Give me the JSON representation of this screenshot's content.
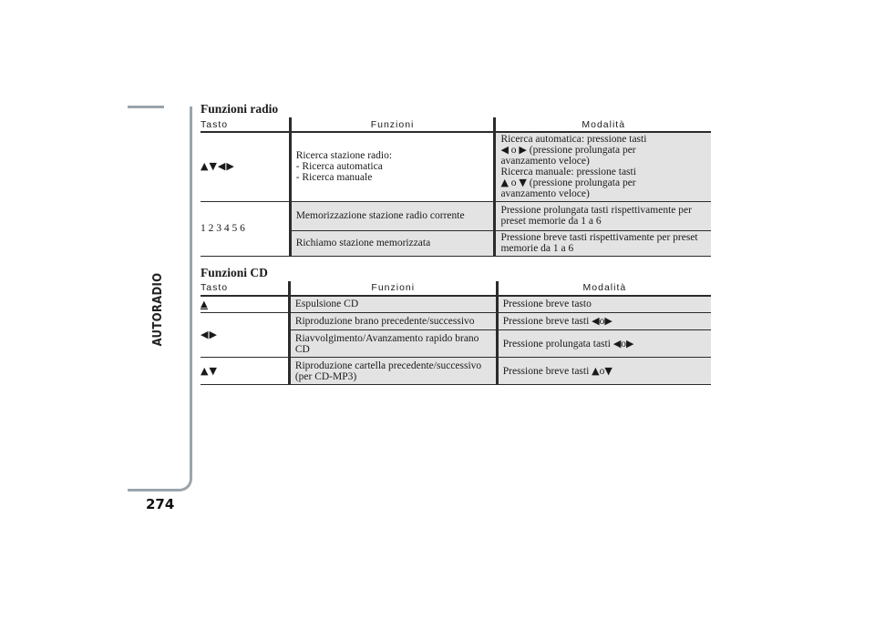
{
  "side": {
    "section_label": "AUTORADIO",
    "page_number": "274"
  },
  "radio": {
    "title": "Funzioni radio",
    "headers": [
      "Tasto",
      "Funzioni",
      "Modalità"
    ],
    "rows": [
      {
        "key": "▲▼◀▶",
        "func_lines": [
          "Ricerca stazione radio:",
          "- Ricerca automatica",
          "- Ricerca manuale"
        ],
        "mode_auto_a": "Ricerca automatica: pressione tasti",
        "mode_auto_b": "(pressione prolungata per",
        "mode_auto_c": "avanzamento veloce)",
        "mode_man_a": "Ricerca manuale: pressione tasti",
        "mode_man_b": "(pressione prolungata per",
        "mode_man_c": "avanzamento veloce)",
        "connector": "o"
      },
      {
        "key": "1 2 3 4 5 6",
        "func": "Memorizzazione stazione radio corrente",
        "mode": "Pressione prolungata tasti rispettivamente per preset memorie da 1 a 6"
      },
      {
        "func": "Richiamo stazione memorizzata",
        "mode": "Pressione breve tasti rispettivamente per preset memorie da 1 a 6"
      }
    ]
  },
  "cd": {
    "title": "Funzioni CD",
    "headers": [
      "Tasto",
      "Funzioni",
      "Modalità"
    ],
    "rows": [
      {
        "key": "▲",
        "func": "Espulsione CD",
        "mode": "Pressione breve tasto"
      },
      {
        "key": "◀▶",
        "func": "Riproduzione brano precedente/successivo",
        "mode": "Pressione breve tasti"
      },
      {
        "func": "Riavvolgimento/Avanzamento rapido brano CD",
        "mode": "Pressione prolungata tasti"
      },
      {
        "key": "▲▼",
        "func": "Riproduzione cartella precedente/successivo (per CD-MP3)",
        "mode": "Pressione breve tasti"
      }
    ],
    "connector": "o"
  },
  "icons": {
    "up": "up-triangle-icon",
    "down": "down-triangle-icon",
    "left": "left-triangle-icon",
    "right": "right-triangle-icon",
    "eject": "eject-icon"
  }
}
